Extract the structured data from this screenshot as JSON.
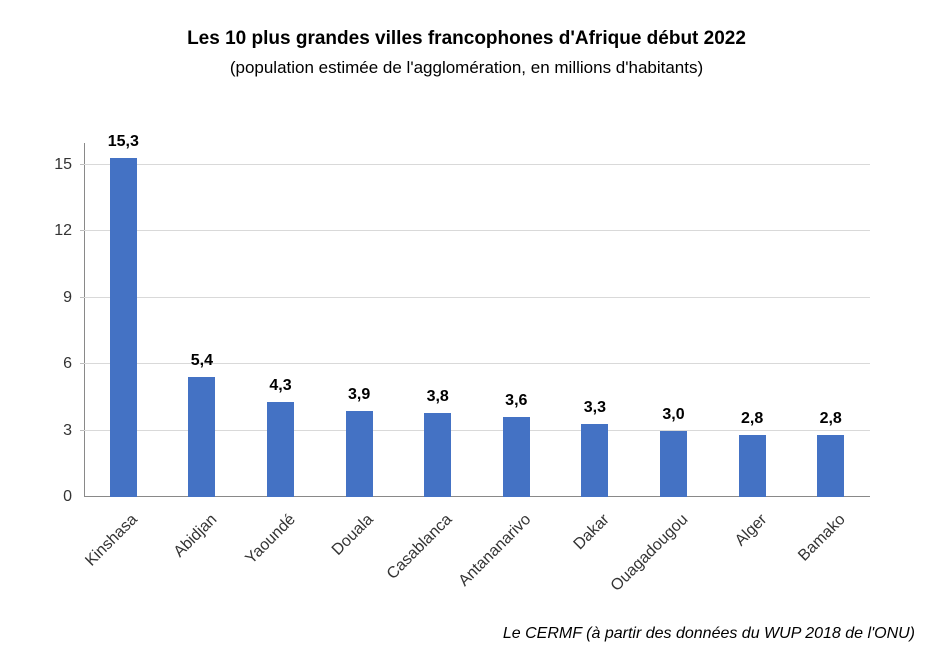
{
  "chart_data": {
    "type": "bar",
    "title": "Les 10 plus grandes villes francophones d'Afrique début 2022",
    "subtitle": "(population estimée de l'agglomération, en millions d'habitants)",
    "source": "Le CERMF (à partir des données du WUP 2018 de l'ONU)",
    "categories": [
      "Kinshasa",
      "Abidjan",
      "Yaoundé",
      "Douala",
      "Casablanca",
      "Antananarivo",
      "Dakar",
      "Ouagadougou",
      "Alger",
      "Bamako"
    ],
    "values": [
      15.3,
      5.4,
      4.3,
      3.9,
      3.8,
      3.6,
      3.3,
      3.0,
      2.8,
      2.8
    ],
    "value_labels": [
      "15,3",
      "5,4",
      "4,3",
      "3,9",
      "3,8",
      "3,6",
      "3,3",
      "3,0",
      "2,8",
      "2,8"
    ],
    "y_ticks": [
      0,
      3,
      6,
      9,
      12,
      15
    ],
    "ylim": [
      0,
      16
    ],
    "xlabel": "",
    "ylabel": "",
    "grid": true,
    "legend": "none",
    "bar_color": "#4472c4",
    "gridline_color": "#d9d9d9",
    "axis_color": "#898989"
  }
}
